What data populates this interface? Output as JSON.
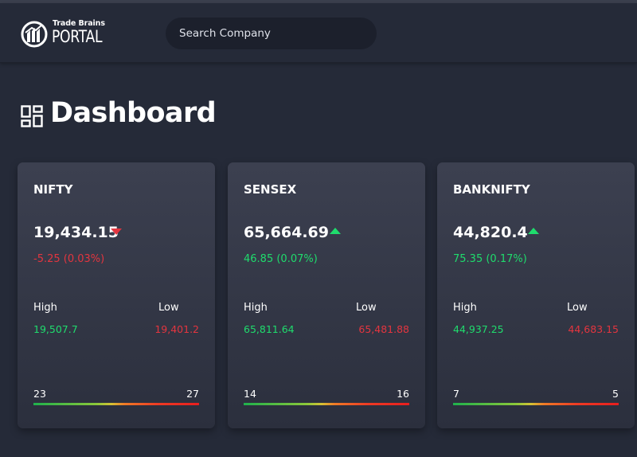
{
  "header": {
    "logo_small": "Trade Brains",
    "logo_big": "PORTAL",
    "search_placeholder": "Search Company"
  },
  "page": {
    "title": "Dashboard"
  },
  "colors": {
    "background": "#252a38",
    "negative": "#e3353f",
    "positive": "#1fdc6d"
  },
  "cards": [
    {
      "name": "NIFTY",
      "price": "19,434.15",
      "direction": "down",
      "change": "-5.25 (0.03%)",
      "high_label": "High",
      "high": "19,507.7",
      "low_label": "Low",
      "low": "19,401.2",
      "range_left": "23",
      "range_right": "27"
    },
    {
      "name": "SENSEX",
      "price": "65,664.69",
      "direction": "up",
      "change": "46.85 (0.07%)",
      "high_label": "High",
      "high": "65,811.64",
      "low_label": "Low",
      "low": "65,481.88",
      "range_left": "14",
      "range_right": "16"
    },
    {
      "name": "BANKNIFTY",
      "price": "44,820.4",
      "direction": "up",
      "change": "75.35 (0.17%)",
      "high_label": "High",
      "high": "44,937.25",
      "low_label": "Low",
      "low": "44,683.15",
      "range_left": "7",
      "range_right": "5"
    }
  ]
}
